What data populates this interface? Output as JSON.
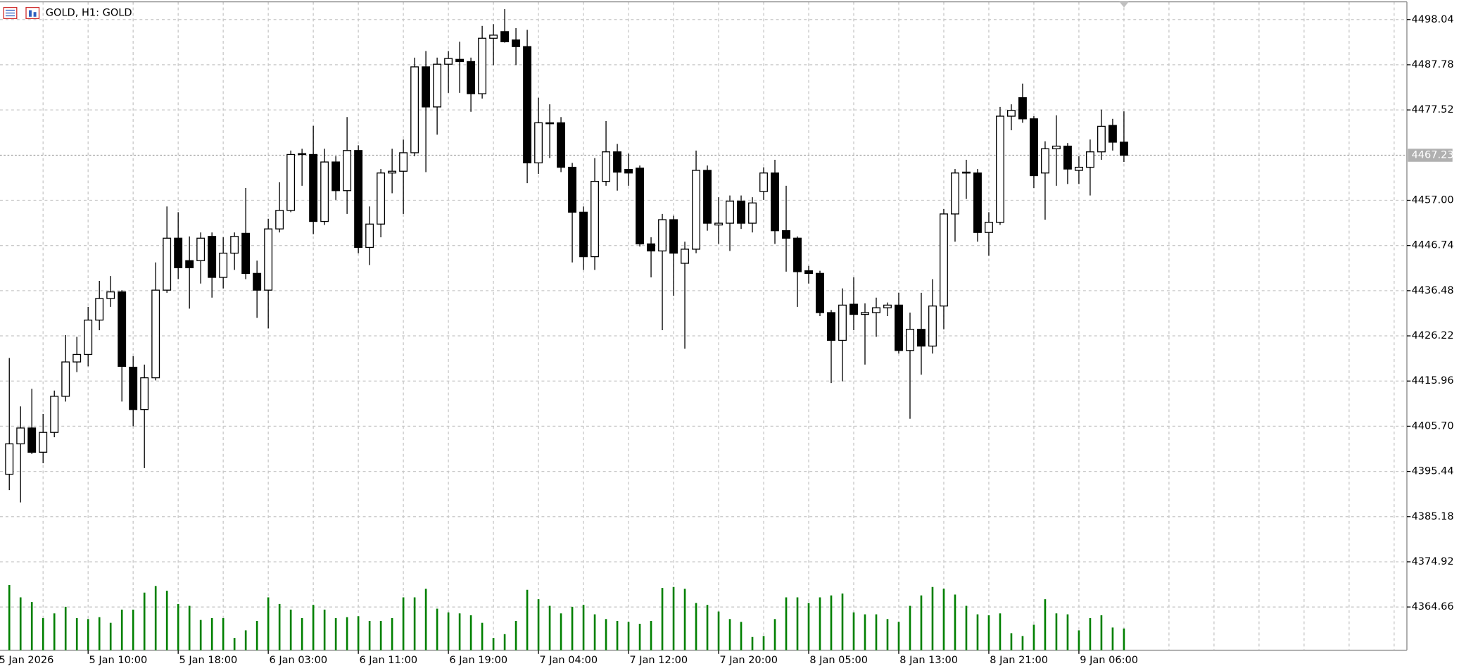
{
  "chart_data": {
    "type": "candlestick",
    "title": "GOLD, H1: GOLD",
    "x_labels": [
      "5 Jan 2026",
      "5 Jan 10:00",
      "5 Jan 18:00",
      "6 Jan 03:00",
      "6 Jan 11:00",
      "6 Jan 19:00",
      "7 Jan 04:00",
      "7 Jan 12:00",
      "7 Jan 20:00",
      "8 Jan 05:00",
      "8 Jan 13:00",
      "8 Jan 21:00",
      "9 Jan 06:00"
    ],
    "open": [
      4394.8,
      4401.7,
      4405.3,
      4399.8,
      4404.3,
      4412.5,
      4420.3,
      4422.0,
      4429.8,
      4434.7,
      4436.2,
      4419.1,
      4409.5,
      4416.7,
      4436.6,
      4448.4,
      4443.3,
      4443.3,
      4448.8,
      4439.5,
      4445.0,
      4449.5,
      4440.4,
      4436.6,
      4450.5,
      4454.7,
      4467.4,
      4467.4,
      4452.2,
      4465.7,
      4459.2,
      4468.3,
      4446.3,
      4451.6,
      4463.2,
      4463.6,
      4467.8,
      4487.3,
      4478.2,
      4487.9,
      4489.0,
      4488.5,
      4481.2,
      4493.8,
      4495.3,
      4493.4,
      4491.9,
      4465.5,
      4474.4,
      4474.6,
      4464.5,
      4454.3,
      4444.2,
      4461.3,
      4468.0,
      4464.0,
      4464.3,
      4447.1,
      4445.5,
      4452.6,
      4442.7,
      4445.9,
      4463.8,
      4451.4,
      4451.8,
      4456.8,
      4451.8,
      4459.0,
      4463.2,
      4450.1,
      4448.4,
      4441.0,
      4440.4,
      4431.5,
      4425.2,
      4433.4,
      4431.1,
      4431.5,
      4432.6,
      4433.2,
      4422.9,
      4427.7,
      4423.9,
      4433.0,
      4453.9,
      4463.4,
      4463.2,
      4449.7,
      4452.0,
      4476.1,
      4480.3,
      4475.5,
      4463.2,
      4468.7,
      4469.3,
      4463.8,
      4464.5,
      4468.0,
      4474.0,
      4470.2
    ],
    "high": [
      4421.2,
      4410.2,
      4414.2,
      4408.5,
      4413.8,
      4426.4,
      4426.0,
      4432.8,
      4438.7,
      4439.8,
      4436.6,
      4421.6,
      4419.7,
      4442.9,
      4455.6,
      4454.3,
      4448.8,
      4449.7,
      4449.7,
      4448.6,
      4449.7,
      4459.8,
      4443.3,
      4452.8,
      4461.1,
      4468.3,
      4468.7,
      4473.9,
      4468.7,
      4467.0,
      4475.9,
      4469.5,
      4455.6,
      4464.1,
      4468.7,
      4470.8,
      4489.4,
      4490.9,
      4489.4,
      4490.9,
      4493.0,
      4489.4,
      4496.6,
      4497.0,
      4500.4,
      4496.1,
      4495.7,
      4480.3,
      4478.8,
      4475.9,
      4465.5,
      4455.6,
      4466.6,
      4475.0,
      4469.8,
      4467.6,
      4464.9,
      4448.6,
      4453.9,
      4453.5,
      4447.6,
      4468.3,
      4464.9,
      4457.7,
      4458.1,
      4458.1,
      4457.7,
      4464.5,
      4466.2,
      4460.3,
      4448.8,
      4442.1,
      4441.0,
      4432.1,
      4437.0,
      4439.5,
      4433.6,
      4434.9,
      4433.8,
      4436.0,
      4431.5,
      4436.0,
      4439.1,
      4455.0,
      4464.1,
      4466.2,
      4464.1,
      4454.3,
      4478.2,
      4478.8,
      4483.5,
      4476.1,
      4470.4,
      4476.3,
      4470.0,
      4467.0,
      4470.8,
      4477.6,
      4475.5,
      4477.2
    ],
    "low": [
      4391.2,
      4388.4,
      4399.4,
      4397.3,
      4403.2,
      4411.3,
      4418.0,
      4419.3,
      4427.5,
      4432.8,
      4411.3,
      4405.7,
      4396.2,
      4416.1,
      4436.0,
      4439.1,
      4432.4,
      4438.1,
      4434.9,
      4437.0,
      4441.2,
      4439.1,
      4430.3,
      4427.9,
      4449.7,
      4454.3,
      4460.3,
      4449.3,
      4451.4,
      4457.1,
      4453.9,
      4445.0,
      4442.3,
      4448.6,
      4458.6,
      4453.9,
      4467.0,
      4463.4,
      4471.9,
      4481.4,
      4481.4,
      4477.1,
      4480.1,
      4487.7,
      4492.8,
      4487.7,
      4460.9,
      4463.0,
      4466.6,
      4463.4,
      4442.9,
      4441.2,
      4441.2,
      4460.3,
      4459.2,
      4460.3,
      4446.5,
      4439.5,
      4427.5,
      4435.3,
      4423.3,
      4445.0,
      4450.1,
      4447.1,
      4445.5,
      4450.5,
      4449.7,
      4457.1,
      4447.1,
      4440.8,
      4432.8,
      4438.1,
      4430.7,
      4415.5,
      4415.9,
      4427.5,
      4419.7,
      4426.0,
      4430.7,
      4422.2,
      4407.4,
      4417.4,
      4422.2,
      4427.7,
      4447.6,
      4457.3,
      4447.6,
      4444.4,
      4451.4,
      4472.9,
      4474.6,
      4459.8,
      4452.6,
      4460.3,
      4460.7,
      4460.7,
      4458.1,
      4466.2,
      4468.3,
      4465.7
    ],
    "close": [
      4401.7,
      4405.3,
      4399.8,
      4404.3,
      4412.5,
      4420.3,
      4422.0,
      4429.8,
      4434.7,
      4436.2,
      4419.3,
      4409.5,
      4416.7,
      4436.6,
      4448.4,
      4441.7,
      4441.7,
      4448.4,
      4439.5,
      4445.0,
      4448.8,
      4440.4,
      4436.6,
      4450.5,
      4454.7,
      4467.4,
      4467.6,
      4452.2,
      4465.7,
      4459.2,
      4468.3,
      4446.3,
      4451.6,
      4463.2,
      4463.6,
      4467.8,
      4487.3,
      4478.2,
      4487.9,
      4489.2,
      4488.5,
      4481.2,
      4493.8,
      4494.5,
      4493.0,
      4491.9,
      4465.5,
      4474.6,
      4474.6,
      4464.5,
      4454.3,
      4444.2,
      4461.3,
      4468.0,
      4463.4,
      4463.2,
      4447.1,
      4445.5,
      4452.6,
      4445.0,
      4445.9,
      4463.8,
      4451.8,
      4451.8,
      4456.8,
      4451.8,
      4456.4,
      4463.2,
      4450.1,
      4448.4,
      4440.8,
      4440.4,
      4431.5,
      4425.2,
      4433.2,
      4431.1,
      4431.5,
      4432.6,
      4433.2,
      4422.9,
      4427.7,
      4423.9,
      4433.0,
      4453.9,
      4463.2,
      4463.2,
      4449.7,
      4452.0,
      4476.1,
      4477.4,
      4475.5,
      4462.6,
      4468.7,
      4469.3,
      4464.1,
      4464.5,
      4468.0,
      4473.8,
      4470.2,
      4467.23
    ],
    "up_color": "#ffffff",
    "down_color": "#000000",
    "volume": {
      "color": "#008000",
      "values": [
        69,
        56,
        51,
        34,
        39,
        46,
        34,
        33,
        35,
        29,
        43,
        43,
        61,
        68,
        63,
        49,
        47,
        32,
        34,
        34,
        13,
        21,
        31,
        56,
        49,
        43,
        34,
        48,
        43,
        34,
        35,
        36,
        31,
        31,
        34,
        56,
        56,
        65,
        44,
        40,
        39,
        37,
        29,
        13,
        17,
        31,
        64,
        54,
        47,
        39,
        46,
        48,
        38,
        33,
        31,
        30,
        28,
        31,
        66,
        67,
        65,
        50,
        48,
        41,
        33,
        30,
        14,
        15,
        33,
        56,
        56,
        50,
        56,
        58,
        60,
        40,
        38,
        38,
        33,
        30,
        47,
        58,
        67,
        65,
        59,
        47,
        38,
        37,
        39,
        18,
        15,
        27,
        54,
        39,
        38,
        21,
        34,
        37,
        24,
        23
      ]
    },
    "last_price": 4467.23,
    "ylim": [
      4354.85,
      4502.48
    ],
    "yticks": [
      4498.04,
      4487.78,
      4477.52,
      {
        "value": 4457.0,
        "label": "4457.00"
      },
      4446.74,
      4436.48,
      4426.22,
      4415.96,
      {
        "value": 4405.7,
        "label": "4405.70"
      },
      4395.44,
      4385.18,
      4374.92,
      4364.66
    ],
    "grid": true
  }
}
